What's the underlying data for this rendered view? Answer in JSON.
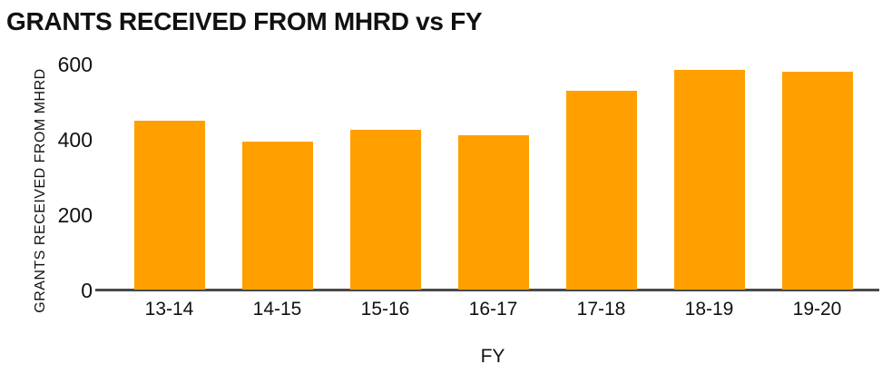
{
  "title": "GRANTS RECEIVED FROM MHRD vs FY",
  "chart_data": {
    "type": "bar",
    "title": "GRANTS RECEIVED FROM MHRD vs FY",
    "categories": [
      "13-14",
      "14-15",
      "15-16",
      "16-17",
      "17-18",
      "18-19",
      "19-20"
    ],
    "values": [
      450,
      395,
      425,
      410,
      530,
      585,
      580
    ],
    "xlabel": "FY",
    "ylabel": "GRANTS RECEIVED FROM MHRD",
    "ylim": [
      0,
      600
    ],
    "yticks": [
      0,
      200,
      400,
      600
    ],
    "bar_color": "#FFA000",
    "axis_line_color": "#4A4A4A",
    "text_color": "#111111",
    "background": "#FFFFFF",
    "grid": false,
    "legend": false
  }
}
